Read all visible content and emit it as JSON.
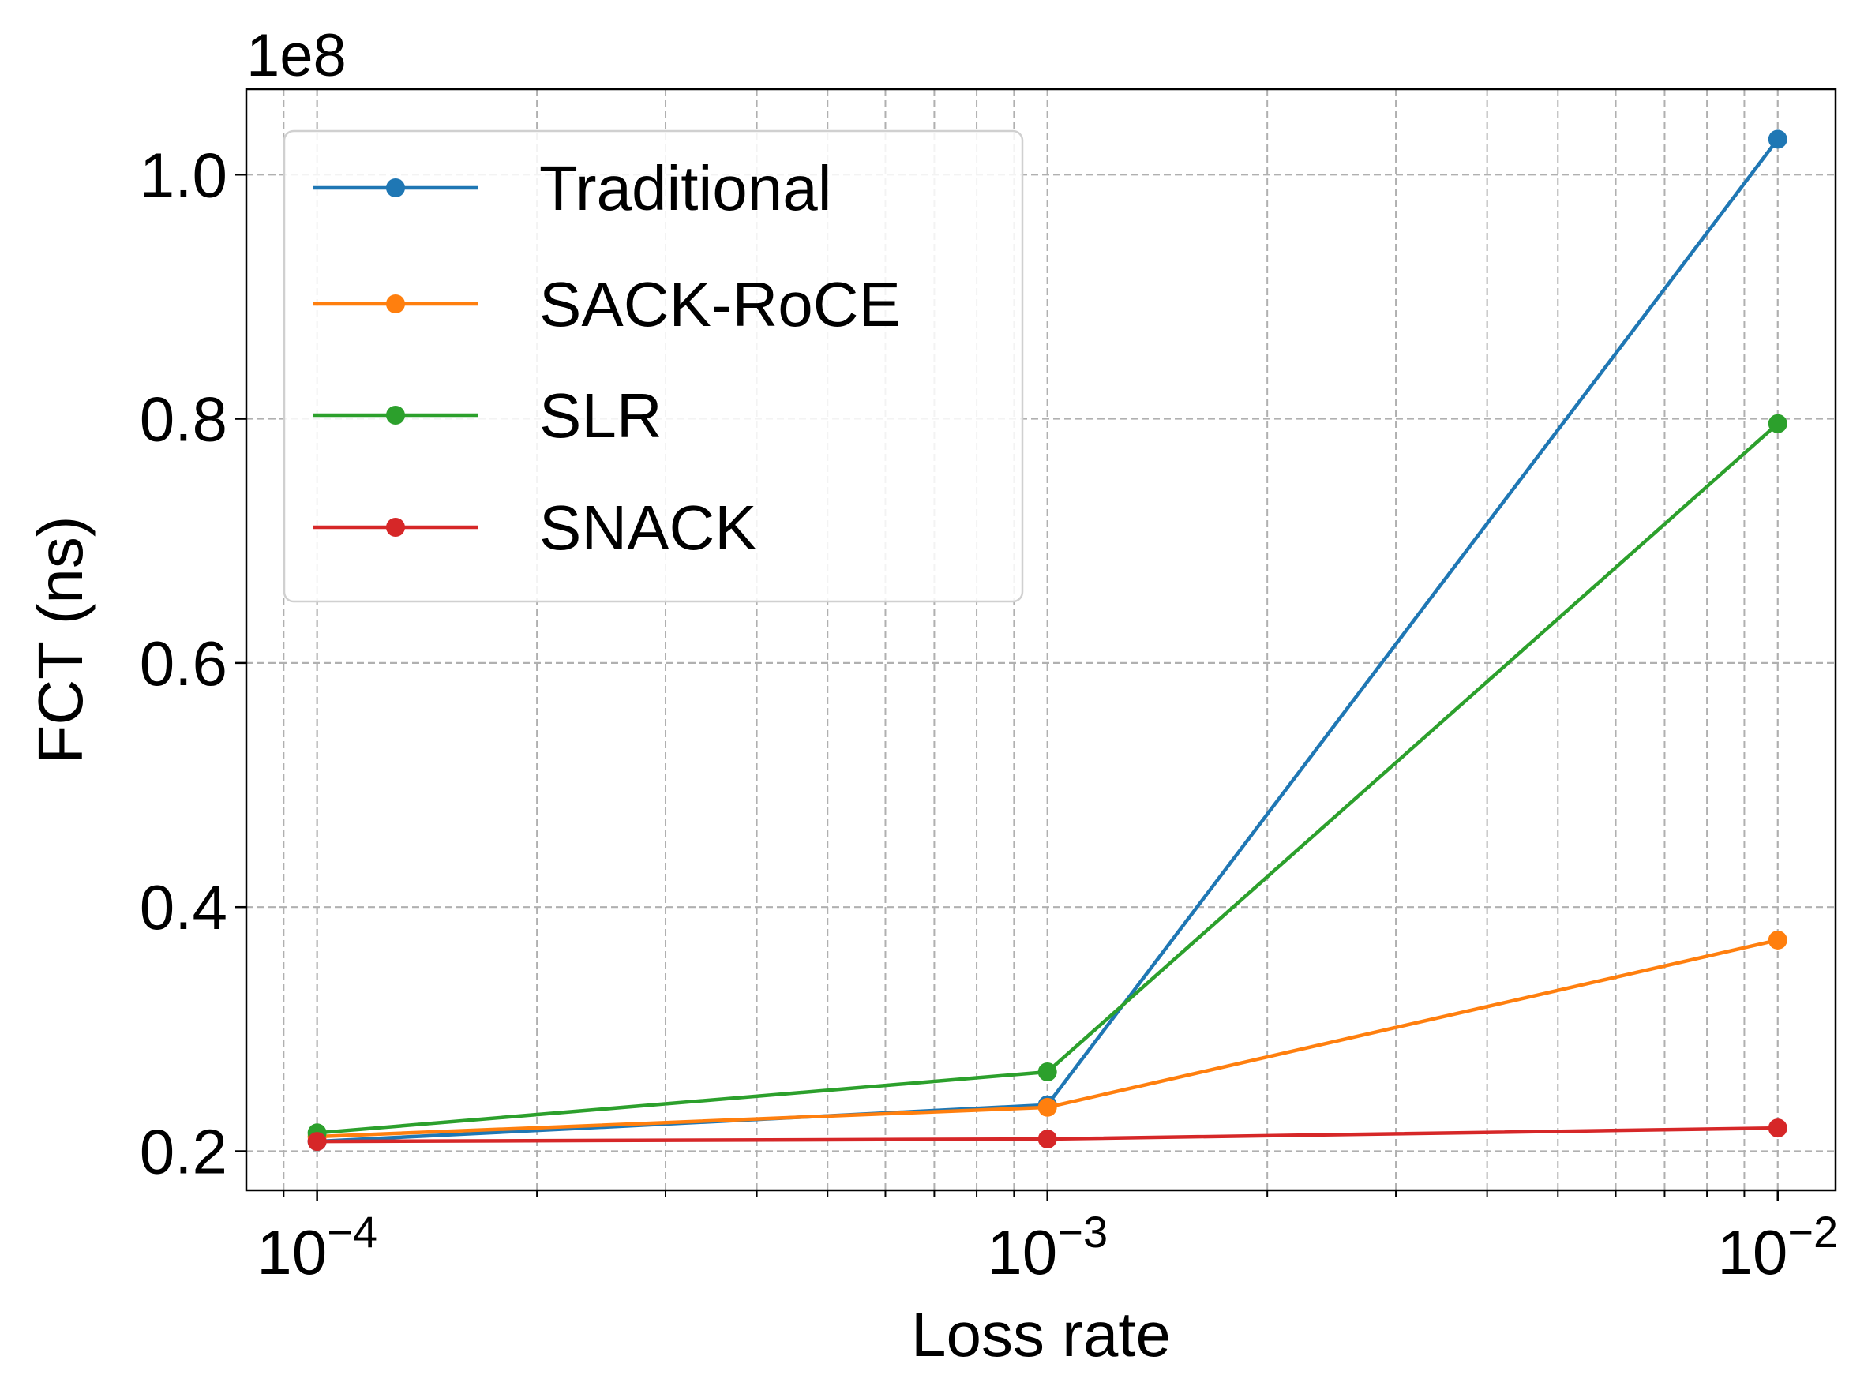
{
  "chart_data": {
    "type": "line",
    "xlabel": "Loss rate",
    "ylabel": "FCT (ns)",
    "y_offset_label": "1e8",
    "x_scale": "log",
    "x": [
      0.0001,
      0.001,
      0.01
    ],
    "x_tick_values": [
      0.0001,
      0.001,
      0.01
    ],
    "x_tick_labels": [
      {
        "base": "10",
        "exp": "−4"
      },
      {
        "base": "10",
        "exp": "−3"
      },
      {
        "base": "10",
        "exp": "−2"
      }
    ],
    "xlim": [
      8e-05,
      0.012
    ],
    "ylim": [
      16800000,
      107000000
    ],
    "y_ticks": [
      20000000,
      40000000,
      60000000,
      80000000,
      100000000
    ],
    "y_tick_labels": [
      "0.2",
      "0.4",
      "0.6",
      "0.8",
      "1.0"
    ],
    "grid": true,
    "legend_position": "top-left",
    "series": [
      {
        "name": "Traditional",
        "color": "#1f77b4",
        "values": [
          20800000,
          23800000,
          102900000
        ]
      },
      {
        "name": "SACK-RoCE",
        "color": "#ff7f0e",
        "values": [
          21200000,
          23600000,
          37300000
        ]
      },
      {
        "name": "SLR",
        "color": "#2ca02c",
        "values": [
          21500000,
          26500000,
          79600000
        ]
      },
      {
        "name": "SNACK",
        "color": "#d62728",
        "values": [
          20800000,
          21000000,
          21900000
        ]
      }
    ]
  }
}
